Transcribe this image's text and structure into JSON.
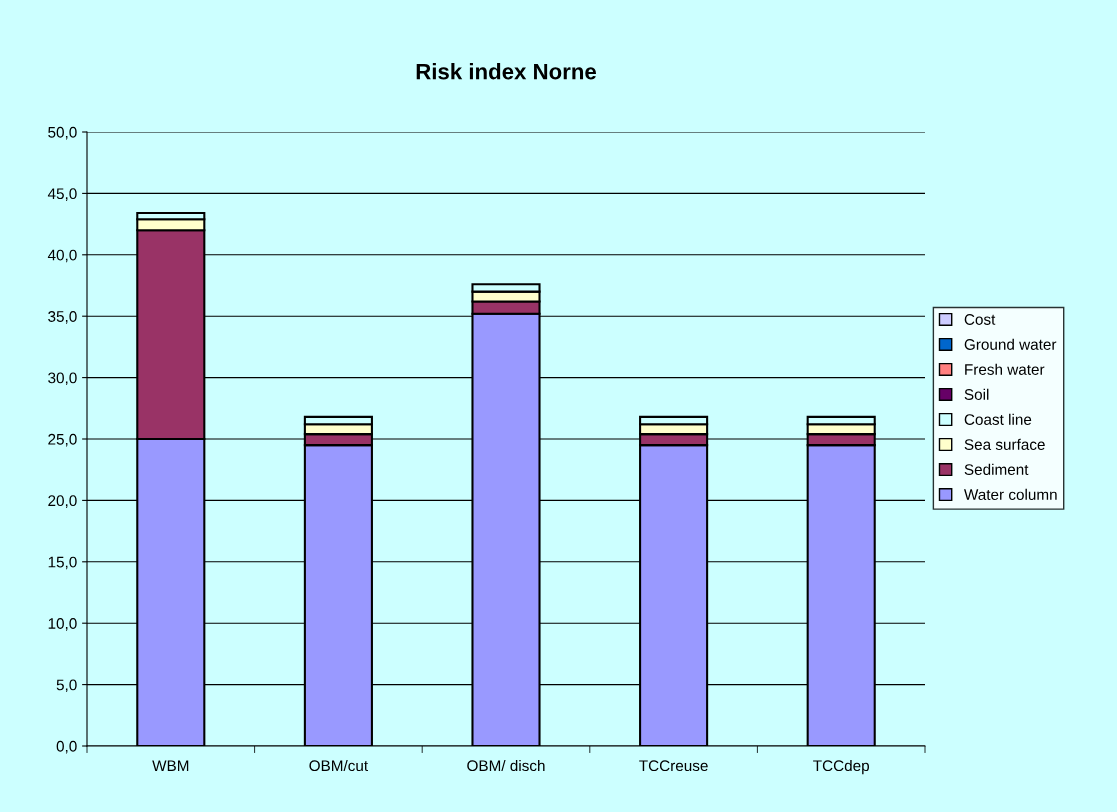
{
  "chart_data": {
    "type": "bar",
    "title": "Risk index Norne",
    "stacked": true,
    "categories": [
      "WBM",
      "OBM/cut",
      "OBM/ disch",
      "TCCreuse",
      "TCCdep"
    ],
    "series": [
      {
        "name": "Water column",
        "color": "#9999ff",
        "values": [
          25.0,
          24.5,
          35.2,
          24.5,
          24.5
        ]
      },
      {
        "name": "Sediment",
        "color": "#993366",
        "values": [
          17.0,
          0.9,
          1.0,
          0.9,
          0.9
        ]
      },
      {
        "name": "Sea surface",
        "color": "#ffffcc",
        "values": [
          0.9,
          0.8,
          0.8,
          0.8,
          0.8
        ]
      },
      {
        "name": "Coast line",
        "color": "#ccffff",
        "values": [
          0.5,
          0.6,
          0.6,
          0.6,
          0.6
        ]
      },
      {
        "name": "Soil",
        "color": "#660066",
        "values": [
          0,
          0,
          0,
          0,
          0
        ]
      },
      {
        "name": "Fresh water",
        "color": "#ff8080",
        "values": [
          0,
          0,
          0,
          0,
          0
        ]
      },
      {
        "name": "Ground water",
        "color": "#0066cc",
        "values": [
          0,
          0,
          0,
          0,
          0
        ]
      },
      {
        "name": "Cost",
        "color": "#ccccff",
        "values": [
          0,
          0,
          0,
          0,
          0
        ]
      }
    ],
    "ylim": [
      0,
      50
    ],
    "yticks": [
      {
        "value": 0,
        "label": "0,0"
      },
      {
        "value": 5,
        "label": "5,0"
      },
      {
        "value": 10,
        "label": "10,0"
      },
      {
        "value": 15,
        "label": "15,0"
      },
      {
        "value": 20,
        "label": "20,0"
      },
      {
        "value": 25,
        "label": "25,0"
      },
      {
        "value": 30,
        "label": "30,0"
      },
      {
        "value": 35,
        "label": "35,0"
      },
      {
        "value": 40,
        "label": "40,0"
      },
      {
        "value": 45,
        "label": "45,0"
      },
      {
        "value": 50,
        "label": "50,0"
      }
    ],
    "grid": "y",
    "legend": "right"
  }
}
